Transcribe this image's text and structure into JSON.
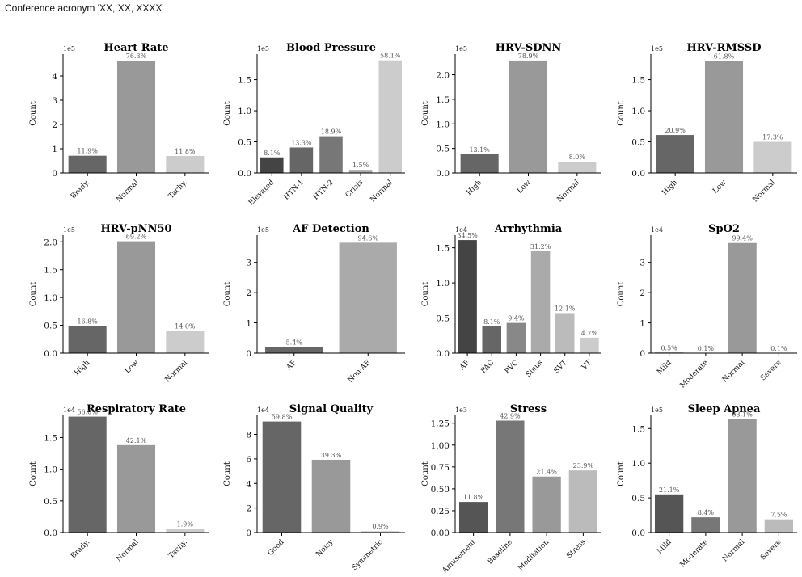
{
  "header": {
    "text": "Conference acronym 'XX, XX, XXXX"
  },
  "colors": {
    "dark": "#444444",
    "dgray": "#666666",
    "mgray": "#777777",
    "gray": "#999999",
    "lgray": "#aaaaaa",
    "llgray": "#bbbbbb",
    "light": "#cccccc"
  },
  "chart_data": [
    {
      "type": "bar",
      "title": "Heart Rate",
      "ylabel": "Count",
      "exponent": "1e5",
      "ylim": [
        0,
        4.9
      ],
      "yticks": [
        0,
        1,
        2,
        3,
        4
      ],
      "yticklabels": [
        "0",
        "1",
        "2",
        "3",
        "4"
      ],
      "categories": [
        "Brady.",
        "Normal",
        "Tachy."
      ],
      "values": [
        0.71,
        4.63,
        0.7
      ],
      "labels": [
        "11.9%",
        "76.3%",
        "11.8%"
      ],
      "colors": [
        "#666666",
        "#999999",
        "#cccccc"
      ]
    },
    {
      "type": "bar",
      "title": "Blood Pressure",
      "ylabel": "Count",
      "exponent": "1e5",
      "ylim": [
        0,
        1.91
      ],
      "yticks": [
        0,
        0.5,
        1.0,
        1.5
      ],
      "yticklabels": [
        "0.0",
        "0.5",
        "1.0",
        "1.5"
      ],
      "categories": [
        "Elevated",
        "HTN-1",
        "HTN-2",
        "Crisis",
        "Normal"
      ],
      "values": [
        0.25,
        0.41,
        0.59,
        0.05,
        1.81
      ],
      "labels": [
        "8.1%",
        "13.3%",
        "18.9%",
        "1.5%",
        "58.1%"
      ],
      "colors": [
        "#444444",
        "#666666",
        "#777777",
        "#aaaaaa",
        "#cccccc"
      ]
    },
    {
      "type": "bar",
      "title": "HRV-SDNN",
      "ylabel": "Count",
      "exponent": "1e5",
      "ylim": [
        0,
        2.42
      ],
      "yticks": [
        0,
        0.5,
        1.0,
        1.5,
        2.0
      ],
      "yticklabels": [
        "0.0",
        "0.5",
        "1.0",
        "1.5",
        "2.0"
      ],
      "categories": [
        "High",
        "Low",
        "Normal"
      ],
      "values": [
        0.38,
        2.29,
        0.23
      ],
      "labels": [
        "13.1%",
        "78.9%",
        "8.0%"
      ],
      "colors": [
        "#666666",
        "#999999",
        "#cccccc"
      ]
    },
    {
      "type": "bar",
      "title": "HRV-RMSSD",
      "ylabel": "Count",
      "exponent": "1e5",
      "ylim": [
        0,
        1.91
      ],
      "yticks": [
        0,
        0.5,
        1.0,
        1.5
      ],
      "yticklabels": [
        "0.0",
        "0.5",
        "1.0",
        "1.5"
      ],
      "categories": [
        "High",
        "Low",
        "Normal"
      ],
      "values": [
        0.61,
        1.8,
        0.5
      ],
      "labels": [
        "20.9%",
        "61.8%",
        "17.3%"
      ],
      "colors": [
        "#666666",
        "#999999",
        "#cccccc"
      ]
    },
    {
      "type": "bar",
      "title": "HRV-pNN50",
      "ylabel": "Count",
      "exponent": "1e5",
      "ylim": [
        0,
        2.12
      ],
      "yticks": [
        0,
        0.5,
        1.0,
        1.5,
        2.0
      ],
      "yticklabels": [
        "0.0",
        "0.5",
        "1.0",
        "1.5",
        "2.0"
      ],
      "categories": [
        "High",
        "Low",
        "Normal"
      ],
      "values": [
        0.49,
        2.01,
        0.4
      ],
      "labels": [
        "16.8%",
        "69.2%",
        "14.0%"
      ],
      "colors": [
        "#666666",
        "#999999",
        "#cccccc"
      ]
    },
    {
      "type": "bar",
      "title": "AF Detection",
      "ylabel": "Count",
      "exponent": "1e5",
      "ylim": [
        0,
        3.9
      ],
      "yticks": [
        0,
        1,
        2,
        3
      ],
      "yticklabels": [
        "0",
        "1",
        "2",
        "3"
      ],
      "categories": [
        "AF",
        "Non-AF"
      ],
      "values": [
        0.2,
        3.65
      ],
      "labels": [
        "5.4%",
        "94.6%"
      ],
      "colors": [
        "#666666",
        "#aaaaaa"
      ]
    },
    {
      "type": "bar",
      "title": "Arrhythmia",
      "ylabel": "Count",
      "exponent": "1e4",
      "ylim": [
        0,
        1.68
      ],
      "yticks": [
        0,
        0.5,
        1.0,
        1.5
      ],
      "yticklabels": [
        "0.0",
        "0.5",
        "1.0",
        "1.5"
      ],
      "categories": [
        "AF",
        "PAC",
        "PVC",
        "Sinus",
        "SVT",
        "VT"
      ],
      "values": [
        1.61,
        0.38,
        0.43,
        1.45,
        0.57,
        0.22
      ],
      "labels": [
        "34.5%",
        "8.1%",
        "9.4%",
        "31.2%",
        "12.1%",
        "4.7%"
      ],
      "colors": [
        "#444444",
        "#666666",
        "#888888",
        "#aaaaaa",
        "#bbbbbb",
        "#cccccc"
      ]
    },
    {
      "type": "bar",
      "title": "SpO2",
      "ylabel": "Count",
      "exponent": "1e4",
      "ylim": [
        0,
        3.9
      ],
      "yticks": [
        0,
        1,
        2,
        3
      ],
      "yticklabels": [
        "0",
        "1",
        "2",
        "3"
      ],
      "categories": [
        "Mild",
        "Moderate",
        "Normal",
        "Severe"
      ],
      "values": [
        0.018,
        0.004,
        3.64,
        0.004
      ],
      "labels": [
        "0.5%",
        "0.1%",
        "99.4%",
        "0.1%"
      ],
      "colors": [
        "#444444",
        "#666666",
        "#999999",
        "#cccccc"
      ]
    },
    {
      "type": "bar",
      "title": "Respiratory Rate",
      "ylabel": "Count",
      "exponent": "1e4",
      "ylim": [
        0,
        1.85
      ],
      "yticks": [
        0,
        0.5,
        1.0,
        1.5
      ],
      "yticklabels": [
        "0.0",
        "0.5",
        "1.0",
        "1.5"
      ],
      "categories": [
        "Brady.",
        "Normal",
        "Tachy."
      ],
      "values": [
        1.83,
        1.38,
        0.06
      ],
      "labels": [
        "56.0%",
        "42.1%",
        "1.9%"
      ],
      "colors": [
        "#666666",
        "#999999",
        "#cccccc"
      ]
    },
    {
      "type": "bar",
      "title": "Signal Quality",
      "ylabel": "Count",
      "exponent": "1e4",
      "ylim": [
        0,
        9.55
      ],
      "yticks": [
        0,
        2,
        4,
        6,
        8
      ],
      "yticklabels": [
        "0",
        "2",
        "4",
        "6",
        "8"
      ],
      "categories": [
        "Good",
        "Noisy",
        "Symmetric"
      ],
      "values": [
        9.05,
        5.93,
        0.12
      ],
      "labels": [
        "59.8%",
        "39.3%",
        "0.9%"
      ],
      "colors": [
        "#666666",
        "#999999",
        "#cccccc"
      ]
    },
    {
      "type": "bar",
      "title": "Stress",
      "ylabel": "Count",
      "exponent": "1e3",
      "ylim": [
        0,
        1.34
      ],
      "yticks": [
        0,
        0.25,
        0.5,
        0.75,
        1.0,
        1.25
      ],
      "yticklabels": [
        "0.00",
        "0.25",
        "0.50",
        "0.75",
        "1.00",
        "1.25"
      ],
      "categories": [
        "Amusement",
        "Baseline",
        "Meditation",
        "Stress"
      ],
      "values": [
        0.35,
        1.28,
        0.64,
        0.71
      ],
      "labels": [
        "11.8%",
        "42.9%",
        "21.4%",
        "23.9%"
      ],
      "colors": [
        "#555555",
        "#777777",
        "#999999",
        "#bbbbbb"
      ]
    },
    {
      "type": "bar",
      "title": "Sleep Apnea",
      "ylabel": "Count",
      "exponent": "1e5",
      "ylim": [
        0,
        1.69
      ],
      "yticks": [
        0,
        0.5,
        1.0,
        1.5
      ],
      "yticklabels": [
        "0.0",
        "0.5",
        "1.0",
        "1.5"
      ],
      "categories": [
        "Mild",
        "Moderate",
        "Normal",
        "Severe"
      ],
      "values": [
        0.55,
        0.22,
        1.64,
        0.19
      ],
      "labels": [
        "21.1%",
        "8.4%",
        "63.1%",
        "7.5%"
      ],
      "colors": [
        "#555555",
        "#777777",
        "#999999",
        "#bbbbbb"
      ]
    }
  ]
}
